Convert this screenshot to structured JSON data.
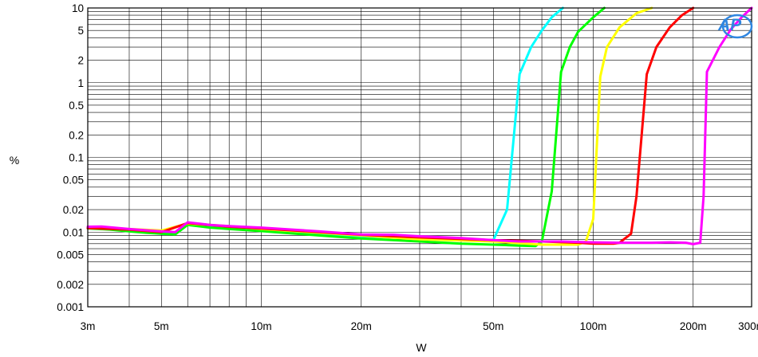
{
  "chart_data": {
    "type": "line",
    "xlabel": "W",
    "ylabel": "%",
    "xscale": "log",
    "yscale": "log",
    "xlim": [
      0.003,
      0.3
    ],
    "ylim": [
      0.001,
      10
    ],
    "grid": true,
    "logo": "AP",
    "x_tick_labels": [
      {
        "value": 0.003,
        "label": "3m"
      },
      {
        "value": 0.005,
        "label": "5m"
      },
      {
        "value": 0.01,
        "label": "10m"
      },
      {
        "value": 0.02,
        "label": "20m"
      },
      {
        "value": 0.05,
        "label": "50m"
      },
      {
        "value": 0.1,
        "label": "100m"
      },
      {
        "value": 0.2,
        "label": "200m"
      },
      {
        "value": 0.3,
        "label": "300m"
      }
    ],
    "y_tick_labels": [
      {
        "value": 10,
        "label": "10"
      },
      {
        "value": 5,
        "label": "5"
      },
      {
        "value": 2,
        "label": "2"
      },
      {
        "value": 1,
        "label": "1"
      },
      {
        "value": 0.5,
        "label": "0.5"
      },
      {
        "value": 0.2,
        "label": "0.2"
      },
      {
        "value": 0.1,
        "label": "0.1"
      },
      {
        "value": 0.05,
        "label": "0.05"
      },
      {
        "value": 0.02,
        "label": "0.02"
      },
      {
        "value": 0.01,
        "label": "0.01"
      },
      {
        "value": 0.005,
        "label": "0.005"
      },
      {
        "value": 0.002,
        "label": "0.002"
      },
      {
        "value": 0.001,
        "label": "0.001"
      }
    ],
    "series": [
      {
        "color": "#00ffff",
        "points": [
          [
            0.003,
            0.0115
          ],
          [
            0.0035,
            0.011
          ],
          [
            0.004,
            0.0105
          ],
          [
            0.0045,
            0.0102
          ],
          [
            0.005,
            0.0095
          ],
          [
            0.0055,
            0.0095
          ],
          [
            0.006,
            0.013
          ],
          [
            0.007,
            0.012
          ],
          [
            0.008,
            0.0118
          ],
          [
            0.01,
            0.0108
          ],
          [
            0.015,
            0.0095
          ],
          [
            0.02,
            0.0088
          ],
          [
            0.03,
            0.0082
          ],
          [
            0.04,
            0.0078
          ],
          [
            0.05,
            0.0078
          ],
          [
            0.055,
            0.02
          ],
          [
            0.06,
            1.3
          ],
          [
            0.065,
            3.0
          ],
          [
            0.07,
            5.0
          ],
          [
            0.075,
            7.5
          ],
          [
            0.081,
            10.0
          ]
        ]
      },
      {
        "color": "#00ff00",
        "points": [
          [
            0.003,
            0.0112
          ],
          [
            0.0035,
            0.0108
          ],
          [
            0.004,
            0.0102
          ],
          [
            0.0045,
            0.0098
          ],
          [
            0.005,
            0.0095
          ],
          [
            0.0055,
            0.0093
          ],
          [
            0.006,
            0.0125
          ],
          [
            0.007,
            0.0115
          ],
          [
            0.008,
            0.011
          ],
          [
            0.01,
            0.0103
          ],
          [
            0.015,
            0.009
          ],
          [
            0.02,
            0.0082
          ],
          [
            0.03,
            0.0075
          ],
          [
            0.04,
            0.007
          ],
          [
            0.05,
            0.0068
          ],
          [
            0.06,
            0.0066
          ],
          [
            0.067,
            0.0065
          ],
          [
            0.07,
            0.0075
          ],
          [
            0.075,
            0.035
          ],
          [
            0.08,
            1.4
          ],
          [
            0.085,
            3.0
          ],
          [
            0.09,
            4.8
          ],
          [
            0.1,
            7.5
          ],
          [
            0.108,
            10.0
          ]
        ]
      },
      {
        "color": "#ffff00",
        "points": [
          [
            0.003,
            0.0115
          ],
          [
            0.004,
            0.011
          ],
          [
            0.005,
            0.0105
          ],
          [
            0.006,
            0.013
          ],
          [
            0.008,
            0.012
          ],
          [
            0.01,
            0.011
          ],
          [
            0.015,
            0.0098
          ],
          [
            0.02,
            0.009
          ],
          [
            0.03,
            0.008
          ],
          [
            0.05,
            0.0075
          ],
          [
            0.07,
            0.0068
          ],
          [
            0.09,
            0.0068
          ],
          [
            0.095,
            0.0075
          ],
          [
            0.1,
            0.015
          ],
          [
            0.105,
            1.2
          ],
          [
            0.11,
            3.0
          ],
          [
            0.12,
            5.5
          ],
          [
            0.135,
            8.5
          ],
          [
            0.15,
            10.0
          ]
        ]
      },
      {
        "color": "#ff0000",
        "points": [
          [
            0.003,
            0.0113
          ],
          [
            0.004,
            0.0108
          ],
          [
            0.005,
            0.01
          ],
          [
            0.006,
            0.0132
          ],
          [
            0.008,
            0.0118
          ],
          [
            0.01,
            0.0112
          ],
          [
            0.015,
            0.01
          ],
          [
            0.02,
            0.0092
          ],
          [
            0.03,
            0.0085
          ],
          [
            0.05,
            0.0078
          ],
          [
            0.07,
            0.0075
          ],
          [
            0.09,
            0.0072
          ],
          [
            0.1,
            0.007
          ],
          [
            0.115,
            0.007
          ],
          [
            0.12,
            0.0072
          ],
          [
            0.13,
            0.0095
          ],
          [
            0.135,
            0.03
          ],
          [
            0.145,
            1.3
          ],
          [
            0.155,
            3.0
          ],
          [
            0.17,
            5.5
          ],
          [
            0.185,
            8.0
          ],
          [
            0.2,
            10.0
          ]
        ]
      },
      {
        "color": "#ff00ff",
        "points": [
          [
            0.003,
            0.0118
          ],
          [
            0.0033,
            0.0119
          ],
          [
            0.004,
            0.011
          ],
          [
            0.005,
            0.0102
          ],
          [
            0.0055,
            0.01
          ],
          [
            0.006,
            0.0135
          ],
          [
            0.007,
            0.0125
          ],
          [
            0.008,
            0.012
          ],
          [
            0.01,
            0.0115
          ],
          [
            0.015,
            0.0102
          ],
          [
            0.02,
            0.0093
          ],
          [
            0.025,
            0.0092
          ],
          [
            0.03,
            0.0088
          ],
          [
            0.04,
            0.0083
          ],
          [
            0.05,
            0.0078
          ],
          [
            0.06,
            0.0075
          ],
          [
            0.08,
            0.0075
          ],
          [
            0.1,
            0.0073
          ],
          [
            0.12,
            0.0072
          ],
          [
            0.15,
            0.0072
          ],
          [
            0.17,
            0.0073
          ],
          [
            0.19,
            0.0072
          ],
          [
            0.2,
            0.0069
          ],
          [
            0.21,
            0.0072
          ],
          [
            0.215,
            0.03
          ],
          [
            0.22,
            1.4
          ],
          [
            0.24,
            3.0
          ],
          [
            0.26,
            5.2
          ],
          [
            0.28,
            7.5
          ],
          [
            0.3,
            10.0
          ]
        ]
      }
    ]
  }
}
